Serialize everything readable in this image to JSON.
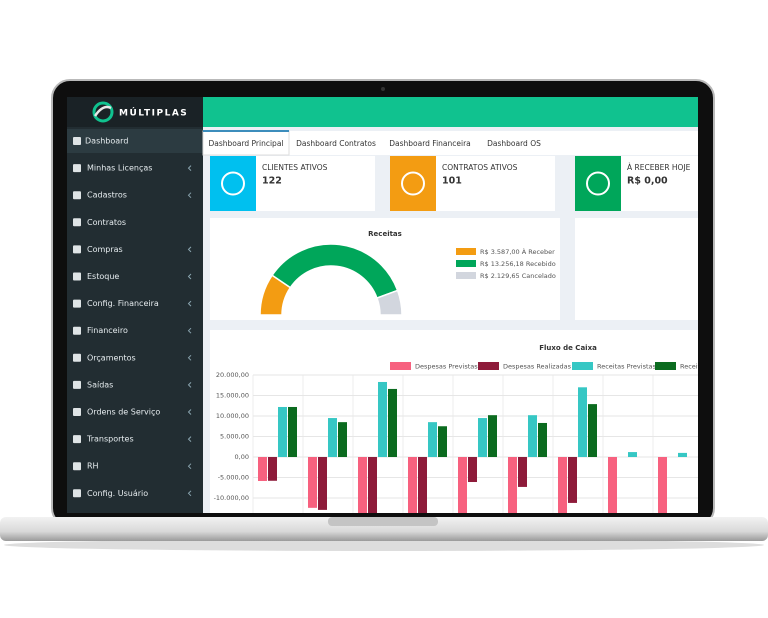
{
  "brand": "MÚLTIPLAS",
  "sidebar": [
    "Dashboard",
    "Minhas Licenças",
    "Cadastros",
    "Contratos",
    "Compras",
    "Estoque",
    "Config. Financeira",
    "Financeiro",
    "Orçamentos",
    "Saídas",
    "Ordens de Serviço",
    "Transportes",
    "RH",
    "Config. Usuário"
  ],
  "tabs": [
    "Dashboard Principal",
    "Dashboard Contratos",
    "Dashboard Financeira",
    "Dashboard OS"
  ],
  "cards": [
    {
      "label": "CLIENTES ATIVOS",
      "value": 122,
      "color": "#00c0ef"
    },
    {
      "label": "CONTRATOS ATIVOS",
      "value": 101,
      "color": "#f39c12"
    },
    {
      "label": "À RECEBER HOJE",
      "value": "R$ 0,00",
      "color": "#00a65a"
    }
  ],
  "chart_data": [
    {
      "type": "doughnut",
      "half": true,
      "title": "Receitas",
      "categories": [
        "R$ 3.587,00 À Receber",
        "R$ 13.256,18 Recebido",
        "R$ 2.129,65 Cancelado"
      ],
      "values": [
        3587.0,
        13256.18,
        2129.65
      ],
      "colors": [
        "#f39c12",
        "#00a65a",
        "#d2d6de"
      ]
    },
    {
      "type": "bar",
      "title": "Fluxo de Caixa",
      "categories": [
        null,
        null,
        null,
        null,
        null,
        null,
        null,
        null,
        null
      ],
      "series": [
        {
          "name": "Despesas Previstas",
          "color": "#f7617f",
          "values": [
            -5850,
            -12400,
            -14500,
            -14500,
            -14500,
            -14500,
            -14500,
            -14500,
            -14500
          ]
        },
        {
          "name": "Despesas Realizadas",
          "color": "#8e1b3a",
          "values": [
            -5800,
            -12900,
            -14500,
            -14500,
            -6100,
            -7300,
            -11200,
            0,
            0
          ]
        },
        {
          "name": "Receitas Previstas",
          "color": "#36c7c4",
          "values": [
            12200,
            9500,
            18300,
            8500,
            9500,
            10200,
            17000,
            1200,
            1000
          ]
        },
        {
          "name": "Receitas Realizadas",
          "color": "#0b6b1f",
          "values": [
            12200,
            8500,
            16600,
            7500,
            10200,
            8300,
            12900,
            0,
            0
          ]
        }
      ],
      "ylim": [
        -15000,
        20000
      ],
      "yticks": [
        {
          "value": 20000,
          "label": "20.000,00"
        },
        {
          "value": 15000,
          "label": "15.000,00"
        },
        {
          "value": 10000,
          "label": "10.000,00"
        },
        {
          "value": 5000,
          "label": "5.000,00"
        },
        {
          "value": 0,
          "label": "0,00"
        },
        {
          "value": -5000,
          "label": "-5.000,00"
        },
        {
          "value": -10000,
          "label": "-10.000,00"
        }
      ],
      "grid": true
    }
  ]
}
